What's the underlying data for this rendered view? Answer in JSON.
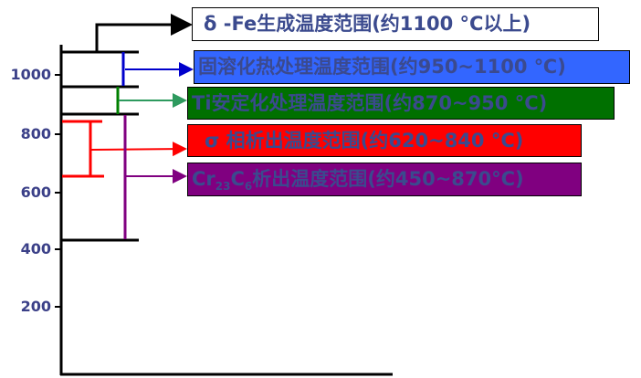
{
  "y_axis": {
    "ticks": [
      "1000",
      "800",
      "600",
      "400",
      "200"
    ]
  },
  "ranges": [
    {
      "id": "delta-fe",
      "label": "δ -Fe生成温度范围(约1100 °C以上)",
      "color": "#ffffff",
      "line_color": "#000000"
    },
    {
      "id": "solution",
      "label": "固溶化热处理温度范围(约950~1100 ℃)",
      "color": "#3366ff",
      "line_color": "#0000cc"
    },
    {
      "id": "ti-stabilize",
      "label": "Ti安定化处理温度范围(约870~950 °C)",
      "color": "#007000",
      "line_color": "#008000"
    },
    {
      "id": "sigma",
      "label": "σ 相析出温度范围(约620~840 °C)",
      "color": "#ff0000",
      "line_color": "#ff0000"
    },
    {
      "id": "cr23c6",
      "label_prefix": "Cr",
      "sub1": "23",
      "label_mid": "C",
      "sub2": "6",
      "label_suffix": "析出温度范围(约450~870°C)",
      "color": "#800080",
      "line_color": "#800080"
    }
  ]
}
